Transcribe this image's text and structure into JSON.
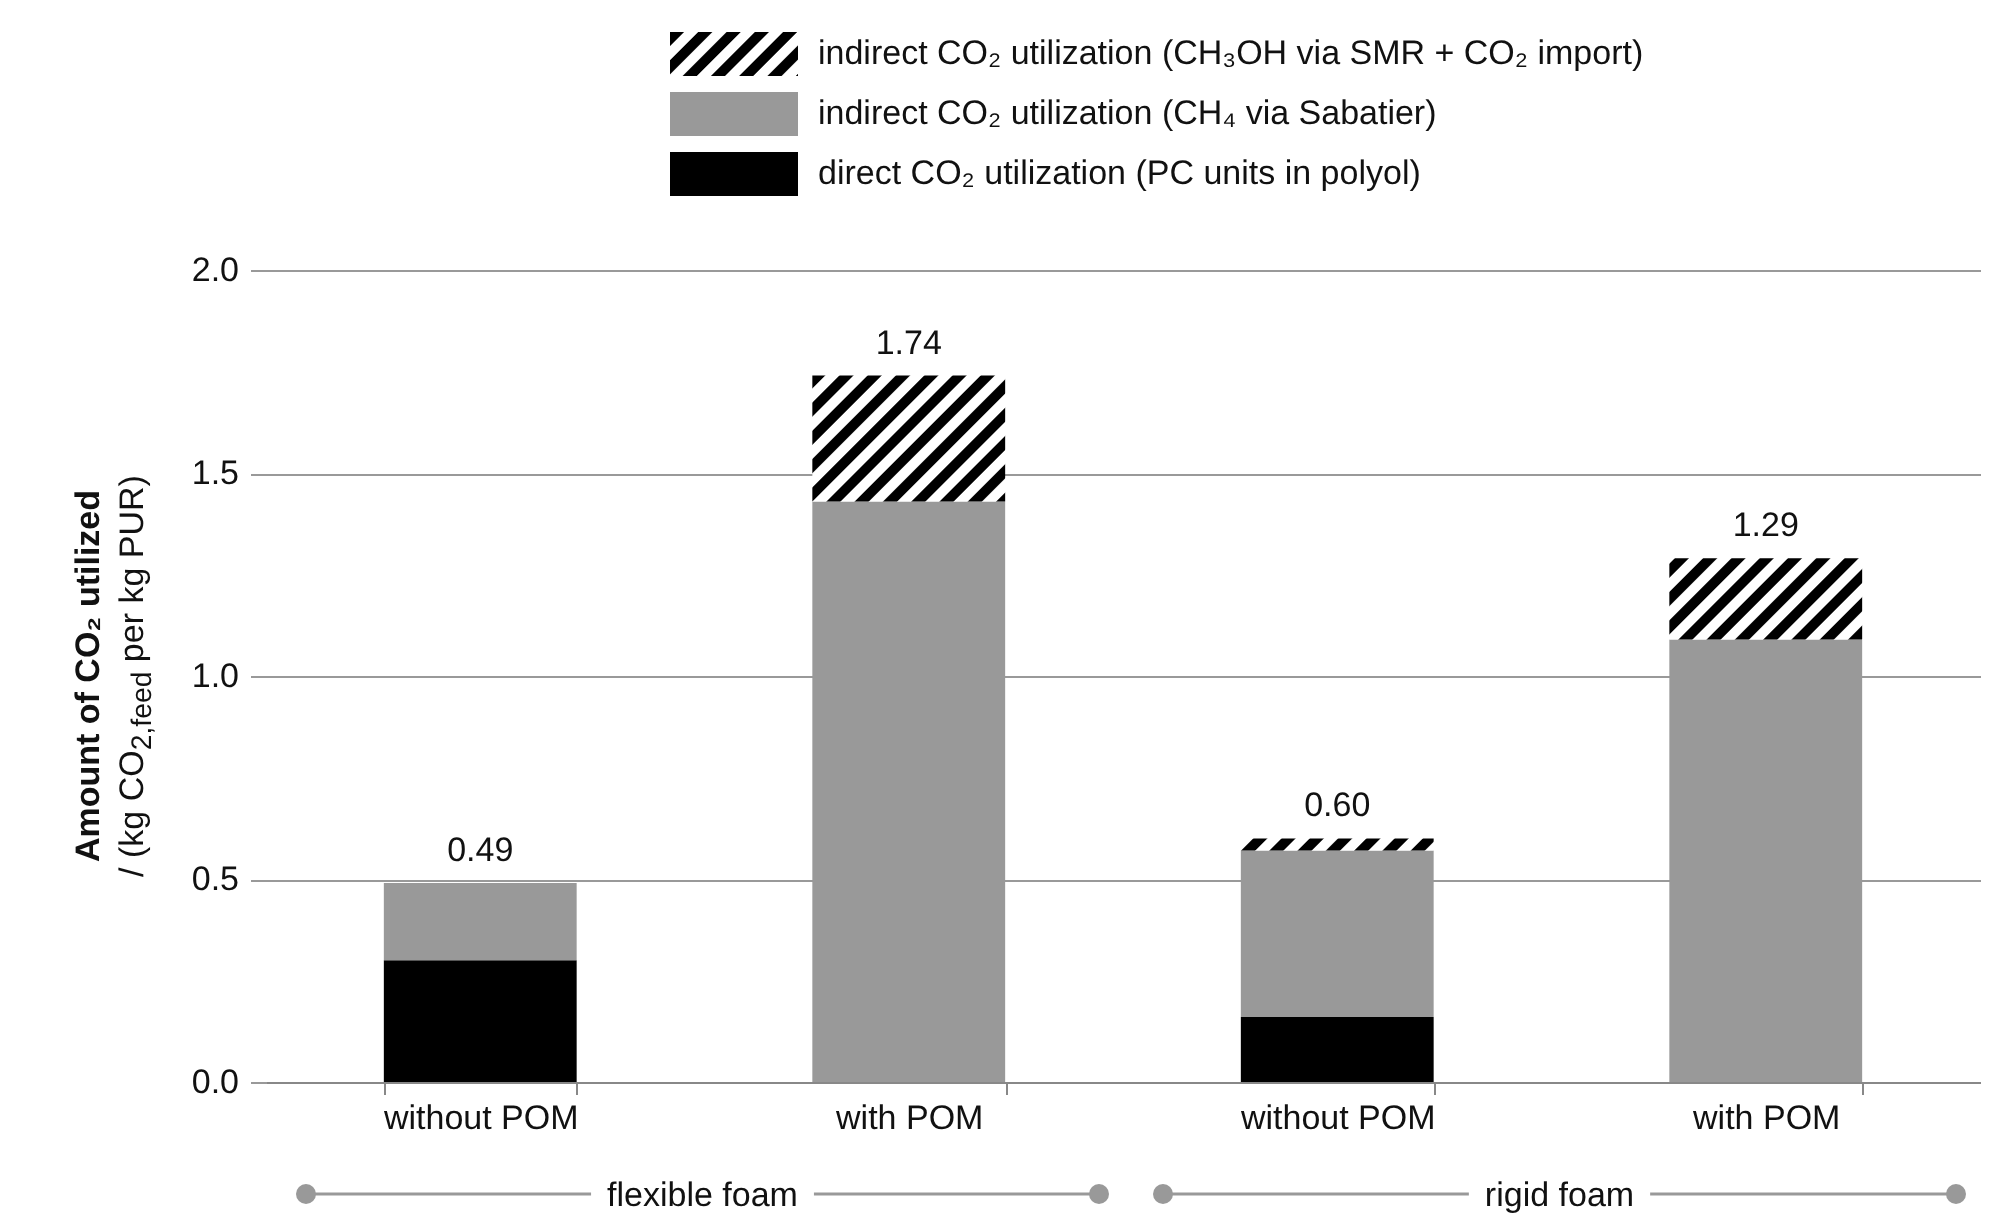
{
  "chart_data": {
    "type": "bar",
    "stacked": true,
    "categories": [
      "without POM",
      "with POM",
      "without POM",
      "with POM"
    ],
    "series": [
      {
        "name": "direct CO₂ utilization (PC units in polyol)",
        "color": "#000000",
        "values": [
          0.3,
          0,
          0.16,
          0
        ]
      },
      {
        "name": "indirect CO₂ utilization (CH₄ via Sabatier)",
        "color": "#999999",
        "values": [
          0.19,
          1.43,
          0.41,
          1.09
        ]
      },
      {
        "name": "indirect CO₂ utilization (CH₃OH via SMR + CO₂ import)",
        "color": "#000000",
        "values": [
          0,
          0.31,
          0.03,
          0.2
        ]
      }
    ],
    "totals": [
      "0.49",
      "1.74",
      "0.60",
      "1.29"
    ],
    "ylabel": "Amount of CO₂ utilized\n/ (kg CO$_{2,feed}$ per kg PUR)",
    "ylim": [
      0,
      2
    ],
    "yticks": [
      {
        "value": 0,
        "label": "0.0"
      },
      {
        "value": 0.5,
        "label": "0.5"
      },
      {
        "value": 1,
        "label": "1.0"
      },
      {
        "value": 1.5,
        "label": "1.5"
      },
      {
        "value": 2,
        "label": "2.0"
      }
    ],
    "grid": "y",
    "legend": "top",
    "annotations": [
      "flexible foam",
      "rigid foam"
    ]
  }
}
